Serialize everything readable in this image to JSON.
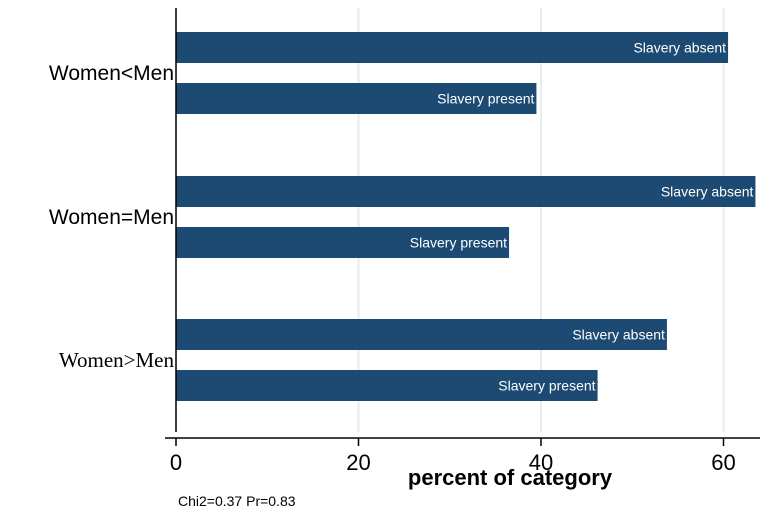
{
  "chart_data": {
    "type": "bar",
    "orientation": "horizontal",
    "title": "",
    "xlabel": "percent of category",
    "ylabel": "",
    "xlim": [
      0,
      64
    ],
    "xticks": [
      0,
      20,
      40,
      60
    ],
    "grid": true,
    "legend": "none",
    "note": "Chi2=0.37  Pr=0.83",
    "bar_color": "#1c4a72",
    "grid_color": "#e4eef1",
    "groups": [
      {
        "label": "Women<Men",
        "bars": [
          {
            "label": "Slavery absent",
            "value": 60.5
          },
          {
            "label": "Slavery present",
            "value": 39.5
          }
        ]
      },
      {
        "label": "Women=Men",
        "bars": [
          {
            "label": "Slavery absent",
            "value": 63.5
          },
          {
            "label": "Slavery present",
            "value": 36.5
          }
        ]
      },
      {
        "label": "Women>Men",
        "bars": [
          {
            "label": "Slavery absent",
            "value": 53.8
          },
          {
            "label": "Slavery present",
            "value": 46.2
          }
        ]
      }
    ]
  }
}
